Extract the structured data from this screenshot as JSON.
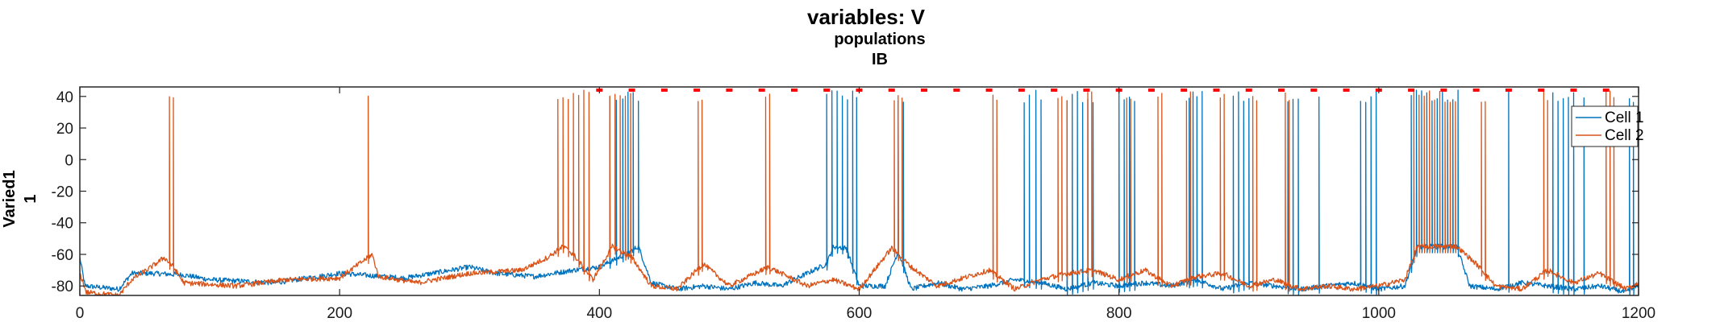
{
  "chart_data": {
    "type": "line",
    "title": "variables: V",
    "subtitle": "populations",
    "subtitle2": "IB",
    "ylabel_line1": "Varied1",
    "ylabel_line2": "1",
    "xlabel": "",
    "xlim": [
      0,
      1200
    ],
    "ylim": [
      -86,
      46
    ],
    "xticks": [
      0,
      200,
      400,
      600,
      800,
      1000,
      1200
    ],
    "yticks": [
      -80,
      -60,
      -40,
      -20,
      0,
      20,
      40
    ],
    "legend_position": "top-right",
    "marker_y": 44,
    "marker_color": "#ff0000",
    "marker_x": [
      400,
      425,
      450,
      475,
      500,
      525,
      550,
      575,
      600,
      625,
      650,
      675,
      700,
      725,
      750,
      775,
      800,
      825,
      850,
      875,
      900,
      925,
      950,
      975,
      1000,
      1025,
      1050,
      1075,
      1100,
      1125,
      1150,
      1175
    ],
    "series": [
      {
        "name": "Cell 1",
        "color": "#0072bd",
        "baseline": [
          [
            0,
            -62
          ],
          [
            4,
            -80
          ],
          [
            30,
            -82
          ],
          [
            40,
            -72
          ],
          [
            55,
            -72
          ],
          [
            80,
            -73
          ],
          [
            100,
            -76
          ],
          [
            150,
            -78
          ],
          [
            200,
            -72
          ],
          [
            250,
            -75
          ],
          [
            300,
            -68
          ],
          [
            320,
            -72
          ],
          [
            350,
            -74
          ],
          [
            380,
            -70
          ],
          [
            400,
            -68
          ],
          [
            420,
            -60
          ],
          [
            430,
            -55
          ],
          [
            440,
            -78
          ],
          [
            460,
            -82
          ],
          [
            480,
            -80
          ],
          [
            500,
            -82
          ],
          [
            520,
            -78
          ],
          [
            540,
            -80
          ],
          [
            560,
            -72
          ],
          [
            575,
            -66
          ],
          [
            580,
            -55
          ],
          [
            590,
            -56
          ],
          [
            600,
            -80
          ],
          [
            620,
            -80
          ],
          [
            630,
            -58
          ],
          [
            640,
            -82
          ],
          [
            660,
            -78
          ],
          [
            680,
            -82
          ],
          [
            700,
            -80
          ],
          [
            720,
            -76
          ],
          [
            740,
            -78
          ],
          [
            760,
            -82
          ],
          [
            780,
            -78
          ],
          [
            800,
            -80
          ],
          [
            820,
            -78
          ],
          [
            840,
            -80
          ],
          [
            860,
            -76
          ],
          [
            880,
            -82
          ],
          [
            900,
            -78
          ],
          [
            920,
            -80
          ],
          [
            940,
            -82
          ],
          [
            960,
            -80
          ],
          [
            980,
            -78
          ],
          [
            1000,
            -82
          ],
          [
            1020,
            -80
          ],
          [
            1030,
            -55
          ],
          [
            1060,
            -55
          ],
          [
            1070,
            -80
          ],
          [
            1090,
            -82
          ],
          [
            1110,
            -78
          ],
          [
            1130,
            -80
          ],
          [
            1150,
            -82
          ],
          [
            1170,
            -80
          ],
          [
            1190,
            -84
          ],
          [
            1200,
            -80
          ]
        ],
        "spikes": [
          408,
          413,
          418,
          422,
          426,
          430,
          575,
          579,
          583,
          587,
          591,
          595,
          598,
          630,
          634,
          727,
          731,
          736,
          740,
          760,
          764,
          768,
          772,
          776,
          780,
          800,
          804,
          808,
          812,
          854,
          857,
          860,
          864,
          888,
          892,
          896,
          900,
          930,
          934,
          938,
          954,
          986,
          990,
          994,
          998,
          1025,
          1029,
          1033,
          1037,
          1041,
          1045,
          1049,
          1053,
          1057,
          1061,
          1100,
          1134,
          1138,
          1142,
          1146,
          1150,
          1158,
          1193,
          1196
        ]
      },
      {
        "name": "Cell 2",
        "color": "#d95319",
        "baseline": [
          [
            0,
            -72
          ],
          [
            5,
            -84
          ],
          [
            30,
            -86
          ],
          [
            40,
            -76
          ],
          [
            55,
            -68
          ],
          [
            65,
            -62
          ],
          [
            72,
            -68
          ],
          [
            80,
            -78
          ],
          [
            120,
            -80
          ],
          [
            160,
            -76
          ],
          [
            200,
            -75
          ],
          [
            225,
            -60
          ],
          [
            230,
            -74
          ],
          [
            260,
            -78
          ],
          [
            300,
            -72
          ],
          [
            340,
            -70
          ],
          [
            360,
            -62
          ],
          [
            372,
            -55
          ],
          [
            380,
            -60
          ],
          [
            395,
            -76
          ],
          [
            410,
            -55
          ],
          [
            425,
            -62
          ],
          [
            440,
            -80
          ],
          [
            460,
            -82
          ],
          [
            480,
            -66
          ],
          [
            500,
            -80
          ],
          [
            530,
            -68
          ],
          [
            560,
            -80
          ],
          [
            580,
            -76
          ],
          [
            600,
            -82
          ],
          [
            625,
            -56
          ],
          [
            640,
            -68
          ],
          [
            660,
            -80
          ],
          [
            700,
            -70
          ],
          [
            720,
            -82
          ],
          [
            740,
            -76
          ],
          [
            760,
            -72
          ],
          [
            780,
            -70
          ],
          [
            800,
            -76
          ],
          [
            820,
            -70
          ],
          [
            840,
            -80
          ],
          [
            860,
            -74
          ],
          [
            880,
            -72
          ],
          [
            900,
            -80
          ],
          [
            920,
            -76
          ],
          [
            940,
            -82
          ],
          [
            960,
            -80
          ],
          [
            980,
            -82
          ],
          [
            1000,
            -80
          ],
          [
            1020,
            -76
          ],
          [
            1030,
            -55
          ],
          [
            1060,
            -55
          ],
          [
            1075,
            -66
          ],
          [
            1090,
            -80
          ],
          [
            1110,
            -82
          ],
          [
            1130,
            -70
          ],
          [
            1150,
            -78
          ],
          [
            1170,
            -72
          ],
          [
            1190,
            -82
          ],
          [
            1200,
            -78
          ]
        ],
        "spikes": [
          69,
          72,
          222,
          368,
          372,
          376,
          380,
          384,
          388,
          392,
          408,
          412,
          416,
          420,
          424,
          476,
          479,
          528,
          531,
          627,
          630,
          633,
          703,
          706,
          753,
          756,
          760,
          776,
          779,
          806,
          809,
          830,
          833,
          852,
          855,
          878,
          881,
          903,
          906,
          928,
          931,
          1027,
          1031,
          1035,
          1039,
          1043,
          1047,
          1051,
          1055,
          1059,
          1079,
          1082,
          1127,
          1130,
          1175,
          1178,
          1181
        ]
      }
    ]
  }
}
